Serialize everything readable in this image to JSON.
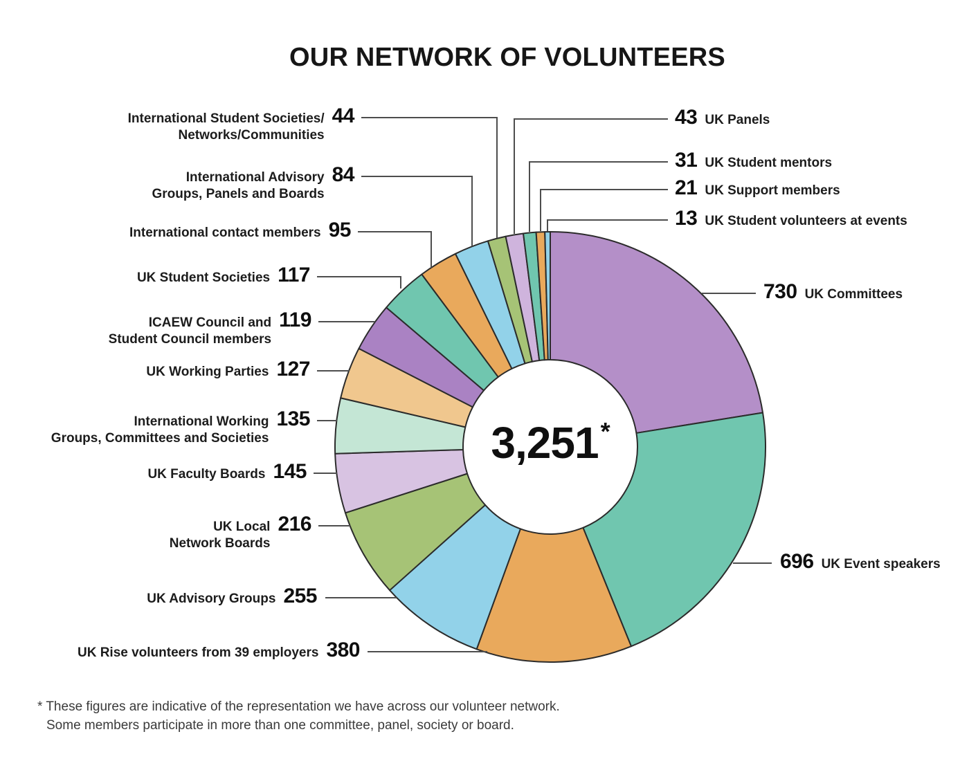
{
  "title": "OUR NETWORK OF VOLUNTEERS",
  "center": {
    "total": "3,251",
    "asterisk": "*"
  },
  "footnote": {
    "line1": "* These figures are indicative of the representation we have across our volunteer network.",
    "line2": "Some members participate in more than one committee, panel, society or board."
  },
  "chart_data": {
    "type": "pie",
    "subtype": "donut",
    "title": "OUR NETWORK OF VOLUNTEERS",
    "total": 3251,
    "total_display": "3,251*",
    "direction": "clockwise",
    "start_angle_deg": 0,
    "stroke_color": "#2b2b2b",
    "leader_color": "#4d4d4d",
    "segments": [
      {
        "label": "UK Committees",
        "value": 730,
        "color": "#b48fc8"
      },
      {
        "label": "UK Event speakers",
        "value": 696,
        "color": "#70c6af"
      },
      {
        "label": "UK Rise volunteers from 39 employers",
        "value": 380,
        "color": "#e9a95c"
      },
      {
        "label": "UK Advisory Groups",
        "value": 255,
        "color": "#92d2e9"
      },
      {
        "label": "UK Local\nNetwork Boards",
        "value": 216,
        "color": "#a6c376"
      },
      {
        "label": "UK Faculty Boards",
        "value": 145,
        "color": "#d8c3e2"
      },
      {
        "label": "International Working\nGroups, Committees and Societies",
        "value": 135,
        "color": "#c4e6d5"
      },
      {
        "label": "UK Working Parties",
        "value": 127,
        "color": "#f0c78e"
      },
      {
        "label": "ICAEW Council and\nStudent Council members",
        "value": 119,
        "color": "#aa82c3"
      },
      {
        "label": "UK Student Societies",
        "value": 117,
        "color": "#70c6af"
      },
      {
        "label": "International contact members",
        "value": 95,
        "color": "#e9a95c"
      },
      {
        "label": "International Advisory\nGroups, Panels and Boards",
        "value": 84,
        "color": "#92d2e9"
      },
      {
        "label": "International Student Societies/\nNetworks/Communities",
        "value": 44,
        "color": "#a6c376"
      },
      {
        "label": "UK Panels",
        "value": 43,
        "color": "#cfb4dd"
      },
      {
        "label": "UK Student mentors",
        "value": 31,
        "color": "#70c6af"
      },
      {
        "label": "UK Support members",
        "value": 21,
        "color": "#e9a95c"
      },
      {
        "label": "UK Student volunteers at events",
        "value": 13,
        "color": "#92d2e9"
      }
    ]
  }
}
